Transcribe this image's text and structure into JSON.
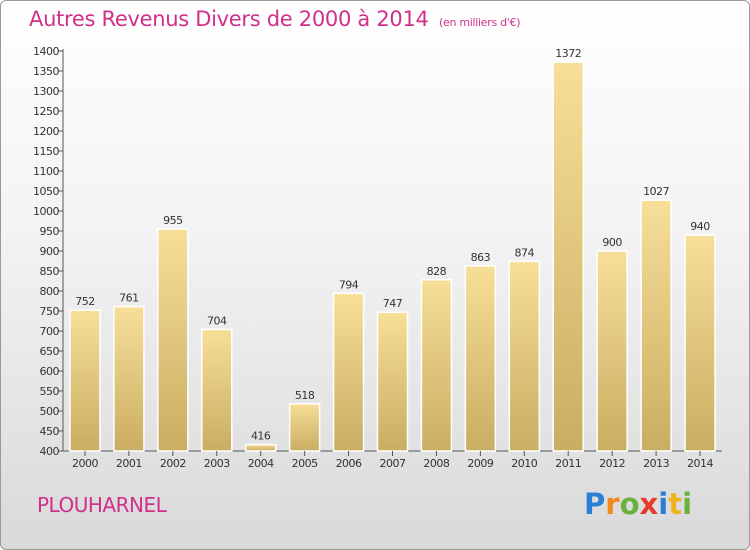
{
  "header": {
    "title": "Autres Revenus Divers de 2000 à 2014",
    "subtitle": "(en milliers d'€)"
  },
  "footer": {
    "city": "PLOUHARNEL",
    "brand_letters": [
      "P",
      "r",
      "o",
      "x",
      "i",
      "t",
      "i"
    ],
    "brand_colors": [
      "#2b7fd6",
      "#f08a1c",
      "#6ab23c",
      "#e83a2d",
      "#2b7fd6",
      "#f0b21c",
      "#6ab23c"
    ]
  },
  "chart_data": {
    "type": "bar",
    "categories": [
      "2000",
      "2001",
      "2002",
      "2003",
      "2004",
      "2005",
      "2006",
      "2007",
      "2008",
      "2009",
      "2010",
      "2011",
      "2012",
      "2013",
      "2014"
    ],
    "values": [
      752,
      761,
      955,
      704,
      416,
      518,
      794,
      747,
      828,
      863,
      874,
      1372,
      900,
      1027,
      940
    ],
    "ylim": [
      400,
      1400
    ],
    "ytick_step": 50,
    "grid": false,
    "bar_color_top": "#f7df98",
    "bar_color_bottom": "#c9ad62"
  }
}
